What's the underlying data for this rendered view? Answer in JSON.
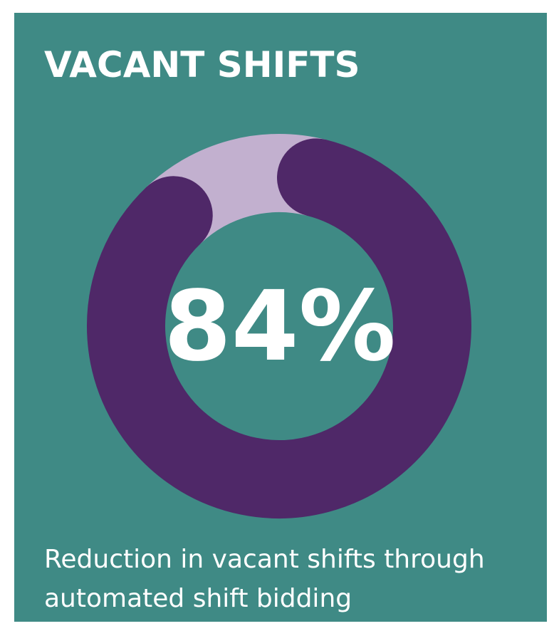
{
  "chart_data": {
    "type": "donut",
    "title": "VACANT SHIFTS",
    "values": [
      84,
      16
    ],
    "colors": [
      "#4f2868",
      "#c2b0cf"
    ],
    "value_labels": [
      "84%"
    ],
    "description_lines": [
      "Reduction in vacant shifts through",
      "automated shift bidding"
    ],
    "background": "#3f8a85"
  }
}
